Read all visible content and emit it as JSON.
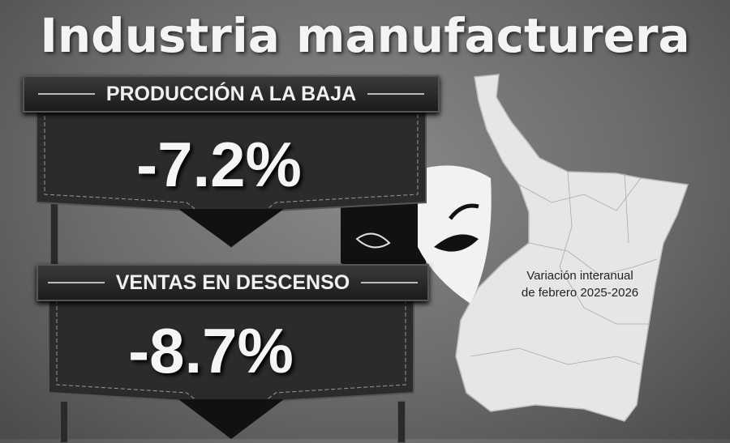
{
  "title": "Industria manufacturera",
  "production": {
    "label": "PRODUCCIÓN A LA BAJA",
    "value": "-7.2%"
  },
  "sales": {
    "label": "VENTAS EN DESCENSO",
    "value": "-8.7%"
  },
  "map": {
    "label": "Variación interanual de febrero 2025-2026",
    "icon": "tamaulipas-map"
  },
  "decor": {
    "icon": "theater-masks-icon"
  },
  "colors": {
    "background": "#6b6b6b",
    "banner": "#1f1f1f",
    "text": "#f4f4f4",
    "map": "#e8e8e8"
  }
}
